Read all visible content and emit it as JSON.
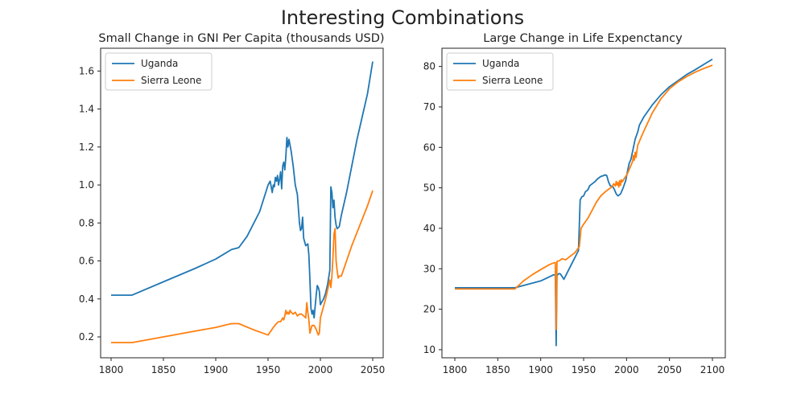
{
  "figure_title": "Interesting Combinations",
  "chart_data": [
    {
      "type": "line",
      "title": "Small Change in GNI Per Capita (thousands USD)",
      "xlabel": "",
      "ylabel": "",
      "xlim": [
        1790,
        2060
      ],
      "ylim": [
        0.09,
        1.72
      ],
      "xticks": [
        1800,
        1850,
        1900,
        1950,
        2000,
        2050
      ],
      "yticks": [
        0.2,
        0.4,
        0.6,
        0.8,
        1.0,
        1.2,
        1.4,
        1.6
      ],
      "ytick_labels": [
        "0.2",
        "0.4",
        "0.6",
        "0.8",
        "1.0",
        "1.2",
        "1.4",
        "1.6"
      ],
      "legend": "top-left",
      "grid": false,
      "series": [
        {
          "name": "Uganda",
          "color": "#1f77b4",
          "points": [
            [
              1800,
              0.42
            ],
            [
              1820,
              0.42
            ],
            [
              1850,
              0.49
            ],
            [
              1880,
              0.56
            ],
            [
              1900,
              0.61
            ],
            [
              1915,
              0.66
            ],
            [
              1922,
              0.67
            ],
            [
              1930,
              0.73
            ],
            [
              1942,
              0.86
            ],
            [
              1950,
              1.0
            ],
            [
              1952,
              1.02
            ],
            [
              1954,
              0.96
            ],
            [
              1955,
              1.0
            ],
            [
              1956,
              0.99
            ],
            [
              1957,
              1.04
            ],
            [
              1958,
              1.02
            ],
            [
              1959,
              1.05
            ],
            [
              1960,
              1.0
            ],
            [
              1961,
              1.03
            ],
            [
              1962,
              1.07
            ],
            [
              1963,
              0.98
            ],
            [
              1964,
              1.1
            ],
            [
              1965,
              1.12
            ],
            [
              1966,
              1.08
            ],
            [
              1967,
              1.15
            ],
            [
              1968,
              1.25
            ],
            [
              1969,
              1.2
            ],
            [
              1970,
              1.24
            ],
            [
              1972,
              1.18
            ],
            [
              1974,
              1.1
            ],
            [
              1976,
              1.0
            ],
            [
              1978,
              0.95
            ],
            [
              1980,
              0.8
            ],
            [
              1981,
              0.76
            ],
            [
              1982,
              0.77
            ],
            [
              1983,
              0.83
            ],
            [
              1984,
              0.72
            ],
            [
              1986,
              0.68
            ],
            [
              1988,
              0.69
            ],
            [
              1989,
              0.63
            ],
            [
              1990,
              0.5
            ],
            [
              1991,
              0.35
            ],
            [
              1992,
              0.32
            ],
            [
              1993,
              0.34
            ],
            [
              1994,
              0.3
            ],
            [
              1995,
              0.36
            ],
            [
              1996,
              0.42
            ],
            [
              1997,
              0.47
            ],
            [
              1998,
              0.46
            ],
            [
              1999,
              0.44
            ],
            [
              2000,
              0.37
            ],
            [
              2001,
              0.38
            ],
            [
              2003,
              0.4
            ],
            [
              2005,
              0.43
            ],
            [
              2007,
              0.48
            ],
            [
              2009,
              0.55
            ],
            [
              2010,
              0.99
            ],
            [
              2011,
              0.96
            ],
            [
              2012,
              0.88
            ],
            [
              2013,
              0.92
            ],
            [
              2014,
              0.83
            ],
            [
              2015,
              0.79
            ],
            [
              2016,
              0.77
            ],
            [
              2018,
              0.78
            ],
            [
              2020,
              0.84
            ],
            [
              2025,
              0.96
            ],
            [
              2030,
              1.1
            ],
            [
              2035,
              1.24
            ],
            [
              2040,
              1.36
            ],
            [
              2045,
              1.48
            ],
            [
              2050,
              1.65
            ]
          ]
        },
        {
          "name": "Sierra Leone",
          "color": "#ff7f0e",
          "points": [
            [
              1800,
              0.17
            ],
            [
              1820,
              0.17
            ],
            [
              1850,
              0.2
            ],
            [
              1880,
              0.23
            ],
            [
              1900,
              0.25
            ],
            [
              1915,
              0.27
            ],
            [
              1922,
              0.27
            ],
            [
              1935,
              0.24
            ],
            [
              1945,
              0.22
            ],
            [
              1950,
              0.21
            ],
            [
              1955,
              0.25
            ],
            [
              1958,
              0.27
            ],
            [
              1960,
              0.28
            ],
            [
              1962,
              0.28
            ],
            [
              1964,
              0.3
            ],
            [
              1965,
              0.29
            ],
            [
              1966,
              0.31
            ],
            [
              1967,
              0.34
            ],
            [
              1968,
              0.32
            ],
            [
              1969,
              0.33
            ],
            [
              1970,
              0.32
            ],
            [
              1971,
              0.34
            ],
            [
              1972,
              0.33
            ],
            [
              1974,
              0.32
            ],
            [
              1976,
              0.33
            ],
            [
              1978,
              0.31
            ],
            [
              1980,
              0.32
            ],
            [
              1982,
              0.32
            ],
            [
              1984,
              0.31
            ],
            [
              1986,
              0.3
            ],
            [
              1987,
              0.38
            ],
            [
              1988,
              0.33
            ],
            [
              1989,
              0.29
            ],
            [
              1990,
              0.22
            ],
            [
              1992,
              0.26
            ],
            [
              1994,
              0.26
            ],
            [
              1996,
              0.24
            ],
            [
              1998,
              0.21
            ],
            [
              1999,
              0.22
            ],
            [
              2000,
              0.3
            ],
            [
              2001,
              0.32
            ],
            [
              2003,
              0.36
            ],
            [
              2005,
              0.4
            ],
            [
              2007,
              0.45
            ],
            [
              2009,
              0.5
            ],
            [
              2010,
              0.46
            ],
            [
              2011,
              0.52
            ],
            [
              2012,
              0.62
            ],
            [
              2013,
              0.74
            ],
            [
              2014,
              0.77
            ],
            [
              2015,
              0.6
            ],
            [
              2016,
              0.55
            ],
            [
              2017,
              0.51
            ],
            [
              2018,
              0.52
            ],
            [
              2020,
              0.52
            ],
            [
              2025,
              0.6
            ],
            [
              2030,
              0.68
            ],
            [
              2035,
              0.75
            ],
            [
              2040,
              0.82
            ],
            [
              2045,
              0.89
            ],
            [
              2050,
              0.97
            ]
          ]
        }
      ]
    },
    {
      "type": "line",
      "title": "Large Change in Life Expenctancy",
      "xlabel": "",
      "ylabel": "",
      "xlim": [
        1785,
        2115
      ],
      "ylim": [
        8,
        84.5
      ],
      "xticks": [
        1800,
        1850,
        1900,
        1950,
        2000,
        2050,
        2100
      ],
      "yticks": [
        10,
        20,
        30,
        40,
        50,
        60,
        70,
        80
      ],
      "ytick_labels": [
        "10",
        "20",
        "30",
        "40",
        "50",
        "60",
        "70",
        "80"
      ],
      "legend": "top-left",
      "grid": false,
      "series": [
        {
          "name": "Uganda",
          "color": "#1f77b4",
          "points": [
            [
              1800,
              25.3
            ],
            [
              1870,
              25.3
            ],
            [
              1900,
              27
            ],
            [
              1915,
              28.5
            ],
            [
              1917,
              28.5
            ],
            [
              1918,
              11
            ],
            [
              1919,
              28.3
            ],
            [
              1921,
              28.8
            ],
            [
              1923,
              28.7
            ],
            [
              1927,
              27.4
            ],
            [
              1932,
              29.5
            ],
            [
              1938,
              32
            ],
            [
              1944,
              34.5
            ],
            [
              1946,
              47
            ],
            [
              1948,
              47.8
            ],
            [
              1950,
              48
            ],
            [
              1952,
              49
            ],
            [
              1955,
              49.5
            ],
            [
              1957,
              50.5
            ],
            [
              1960,
              51
            ],
            [
              1963,
              51.5
            ],
            [
              1966,
              52.2
            ],
            [
              1970,
              52.8
            ],
            [
              1973,
              53
            ],
            [
              1975,
              53.2
            ],
            [
              1977,
              53
            ],
            [
              1979,
              51.5
            ],
            [
              1981,
              50.5
            ],
            [
              1984,
              50.3
            ],
            [
              1986,
              49.5
            ],
            [
              1988,
              48.5
            ],
            [
              1990,
              48
            ],
            [
              1993,
              48.5
            ],
            [
              1996,
              50
            ],
            [
              1999,
              51.8
            ],
            [
              2001,
              54
            ],
            [
              2003,
              56
            ],
            [
              2005,
              57
            ],
            [
              2008,
              60
            ],
            [
              2010,
              62
            ],
            [
              2013,
              63.8
            ],
            [
              2015,
              65.5
            ],
            [
              2020,
              67.5
            ],
            [
              2030,
              70.5
            ],
            [
              2040,
              73
            ],
            [
              2050,
              75
            ],
            [
              2060,
              76.5
            ],
            [
              2070,
              78
            ],
            [
              2080,
              79.2
            ],
            [
              2090,
              80.5
            ],
            [
              2100,
              81.8
            ]
          ]
        },
        {
          "name": "Sierra Leone",
          "color": "#ff7f0e",
          "points": [
            [
              1800,
              25
            ],
            [
              1870,
              25
            ],
            [
              1880,
              27
            ],
            [
              1890,
              28.5
            ],
            [
              1900,
              29.8
            ],
            [
              1910,
              31
            ],
            [
              1916,
              31.5
            ],
            [
              1917,
              31.5
            ],
            [
              1918,
              15
            ],
            [
              1919,
              31.8
            ],
            [
              1922,
              32
            ],
            [
              1925,
              32.5
            ],
            [
              1929,
              32.2
            ],
            [
              1935,
              33.2
            ],
            [
              1940,
              34
            ],
            [
              1945,
              35.5
            ],
            [
              1947,
              40
            ],
            [
              1950,
              41
            ],
            [
              1955,
              42.5
            ],
            [
              1960,
              44.5
            ],
            [
              1965,
              46.5
            ],
            [
              1970,
              48
            ],
            [
              1975,
              49
            ],
            [
              1980,
              49.8
            ],
            [
              1983,
              50.2
            ],
            [
              1985,
              51
            ],
            [
              1987,
              50.5
            ],
            [
              1988,
              51.6
            ],
            [
              1989,
              50.7
            ],
            [
              1990,
              51.3
            ],
            [
              1991,
              50.2
            ],
            [
              1992,
              51.8
            ],
            [
              1993,
              50.6
            ],
            [
              1994,
              52
            ],
            [
              1995,
              51.5
            ],
            [
              1997,
              52.2
            ],
            [
              1999,
              52.8
            ],
            [
              2001,
              53.5
            ],
            [
              2003,
              54.5
            ],
            [
              2005,
              55.5
            ],
            [
              2007,
              56.5
            ],
            [
              2008,
              58
            ],
            [
              2009,
              56.8
            ],
            [
              2010,
              58.8
            ],
            [
              2011,
              57.5
            ],
            [
              2012,
              59
            ],
            [
              2013,
              60.5
            ],
            [
              2015,
              61.5
            ],
            [
              2018,
              63
            ],
            [
              2020,
              64
            ],
            [
              2030,
              68.5
            ],
            [
              2040,
              72
            ],
            [
              2050,
              74.5
            ],
            [
              2060,
              76.2
            ],
            [
              2070,
              77.5
            ],
            [
              2080,
              78.6
            ],
            [
              2090,
              79.5
            ],
            [
              2100,
              80.3
            ]
          ]
        }
      ]
    }
  ]
}
